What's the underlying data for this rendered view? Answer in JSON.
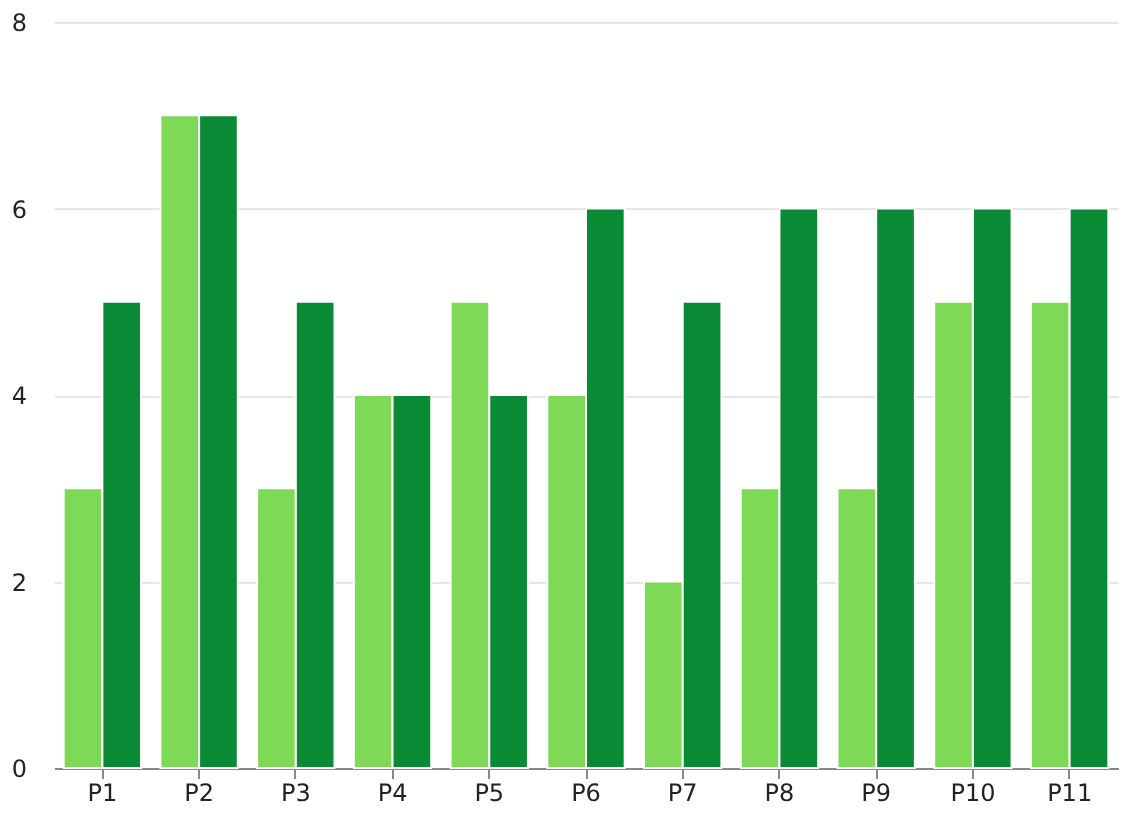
{
  "chart_data": {
    "type": "bar",
    "categories": [
      "P1",
      "P2",
      "P3",
      "P4",
      "P5",
      "P6",
      "P7",
      "P8",
      "P9",
      "P10",
      "P11"
    ],
    "series": [
      {
        "color": "#7ed957",
        "values": [
          3,
          7,
          3,
          4,
          5,
          4,
          2,
          3,
          3,
          5,
          5
        ]
      },
      {
        "color": "#0b8a35",
        "values": [
          5,
          7,
          5,
          4,
          4,
          6,
          5,
          6,
          6,
          6,
          6
        ]
      }
    ],
    "ylim": [
      0,
      8
    ],
    "yticks": [
      0,
      2,
      4,
      6,
      8
    ],
    "grid": "y",
    "legend": false
  }
}
